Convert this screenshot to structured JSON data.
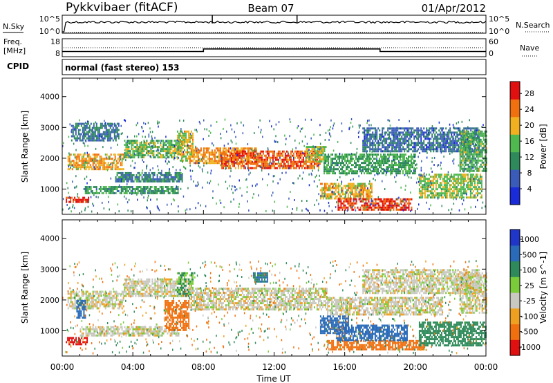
{
  "header": {
    "station": "Pykkvibaer (fitACF)",
    "beam": "Beam 07",
    "date": "01/Apr/2012"
  },
  "strip_labels": {
    "nsky": "N.Sky",
    "nsearch": "N.Search",
    "freq_line1": "Freq.",
    "freq_line2": "[MHz]",
    "nave": "Nave",
    "cpid": "CPID",
    "cpid_value": "normal (fast stereo) 153"
  },
  "chart_data": [
    {
      "type": "line",
      "panel": "noise",
      "left_ticks": [
        "10^5",
        "10^0"
      ],
      "right_ticks": [
        "10^5",
        "10^0"
      ],
      "left_series": "N.Sky",
      "right_series": "N.Search",
      "spikes_hours": [
        8.5,
        13.3
      ]
    },
    {
      "type": "line",
      "panel": "frequency-nave",
      "left_ticks": [
        18,
        8
      ],
      "right_ticks": [
        60,
        0
      ],
      "left_series": "Freq. [MHz]",
      "right_series": "Nave",
      "freq_steps": [
        {
          "from": 0,
          "to": 8,
          "value": 10.9
        },
        {
          "from": 8,
          "to": 18,
          "value": 12.3
        },
        {
          "from": 18,
          "to": 24,
          "value": 10.9
        }
      ],
      "nave_level": 15
    },
    {
      "type": "heatmap",
      "panel": "power",
      "xlabel": "",
      "ylabel": "Slant Range [km]",
      "xlim": [
        0,
        24
      ],
      "ylim": [
        180,
        4600
      ],
      "yticks": [
        1000,
        2000,
        3000,
        4000
      ],
      "colorbar_label": "Power [dB]",
      "colorbar_ticks": [
        4,
        8,
        12,
        16,
        20,
        24,
        28
      ],
      "colorbar_range": [
        0,
        31
      ],
      "colorbar_colors": [
        "#1a2bd8",
        "#3a5cb8",
        "#2e8a5a",
        "#4fb84f",
        "#f0b020",
        "#f07010",
        "#e01010"
      ],
      "bands": [
        {
          "t": [
            0.2,
            1.5
          ],
          "r": [
            550,
            750
          ],
          "v": 27
        },
        {
          "t": [
            0.3,
            3.5
          ],
          "r": [
            1650,
            2150
          ],
          "v": 21
        },
        {
          "t": [
            3.5,
            6.8
          ],
          "r": [
            2050,
            2600
          ],
          "v": 16
        },
        {
          "t": [
            0.5,
            3.2
          ],
          "r": [
            2600,
            3150
          ],
          "v": 10
        },
        {
          "t": [
            1.2,
            6.6
          ],
          "r": [
            850,
            1100
          ],
          "v": 13
        },
        {
          "t": [
            3.0,
            6.8
          ],
          "r": [
            1250,
            1550
          ],
          "v": 11
        },
        {
          "t": [
            6.5,
            7.4
          ],
          "r": [
            1900,
            2900
          ],
          "v": 19
        },
        {
          "t": [
            7.2,
            11.0
          ],
          "r": [
            1850,
            2350
          ],
          "v": 22
        },
        {
          "t": [
            9.0,
            14.6
          ],
          "r": [
            1650,
            2250
          ],
          "v": 25
        },
        {
          "t": [
            13.8,
            14.9
          ],
          "r": [
            1900,
            2400
          ],
          "v": 18
        },
        {
          "t": [
            14.6,
            17.5
          ],
          "r": [
            700,
            1200
          ],
          "v": 20
        },
        {
          "t": [
            15.6,
            19.8
          ],
          "r": [
            350,
            700
          ],
          "v": 27
        },
        {
          "t": [
            14.8,
            20.0
          ],
          "r": [
            1500,
            2150
          ],
          "v": 14
        },
        {
          "t": [
            17.0,
            23.6
          ],
          "r": [
            2200,
            3000
          ],
          "v": 9
        },
        {
          "t": [
            20.2,
            23.8
          ],
          "r": [
            700,
            1500
          ],
          "v": 17
        },
        {
          "t": [
            22.5,
            24.0
          ],
          "r": [
            1600,
            2900
          ],
          "v": 15
        }
      ]
    },
    {
      "type": "heatmap",
      "panel": "velocity",
      "xlabel": "Time UT",
      "ylabel": "Slant Range [km]",
      "xlim": [
        0,
        24
      ],
      "ylim": [
        180,
        4600
      ],
      "yticks": [
        1000,
        2000,
        3000,
        4000
      ],
      "xticks": [
        "00:00",
        "04:00",
        "08:00",
        "12:00",
        "16:00",
        "20:00",
        "00:00"
      ],
      "colorbar_label": "Velocity [m s^-1]",
      "colorbar_ticks": [
        1000,
        500,
        100,
        25,
        -25,
        -100,
        -500,
        -1000
      ],
      "colorbar_colors": [
        "#2036c8",
        "#2a6ab8",
        "#2e8a5a",
        "#7acc3a",
        "#c8c8c0",
        "#f0a020",
        "#f07010",
        "#e01010"
      ],
      "bands": [
        {
          "t": [
            0.2,
            1.5
          ],
          "r": [
            550,
            800
          ],
          "v": -600
        },
        {
          "t": [
            0.3,
            3.5
          ],
          "r": [
            1700,
            2300
          ],
          "v": 0
        },
        {
          "t": [
            3.5,
            7.2
          ],
          "r": [
            2100,
            2700
          ],
          "v": 0
        },
        {
          "t": [
            1.0,
            6.6
          ],
          "r": [
            850,
            1150
          ],
          "v": 0
        },
        {
          "t": [
            0.8,
            1.3
          ],
          "r": [
            1400,
            2000
          ],
          "v": 600
        },
        {
          "t": [
            5.8,
            7.2
          ],
          "r": [
            1000,
            2000
          ],
          "v": -150
        },
        {
          "t": [
            6.5,
            7.4
          ],
          "r": [
            2100,
            2900
          ],
          "v": 60
        },
        {
          "t": [
            7.2,
            15.0
          ],
          "r": [
            1700,
            2400
          ],
          "v": 0
        },
        {
          "t": [
            10.8,
            11.6
          ],
          "r": [
            2600,
            2900
          ],
          "v": 300
        },
        {
          "t": [
            14.6,
            16.2
          ],
          "r": [
            900,
            1500
          ],
          "v": 700
        },
        {
          "t": [
            15.0,
            20.5
          ],
          "r": [
            400,
            700
          ],
          "v": -200
        },
        {
          "t": [
            15.5,
            19.5
          ],
          "r": [
            700,
            1200
          ],
          "v": 400
        },
        {
          "t": [
            15.0,
            21.5
          ],
          "r": [
            1500,
            2100
          ],
          "v": 0
        },
        {
          "t": [
            17.0,
            23.6
          ],
          "r": [
            2200,
            3000
          ],
          "v": 0
        },
        {
          "t": [
            20.2,
            24.0
          ],
          "r": [
            500,
            1300
          ],
          "v": 150
        },
        {
          "t": [
            22.5,
            24.0
          ],
          "r": [
            1600,
            2900
          ],
          "v": 0
        }
      ]
    }
  ]
}
